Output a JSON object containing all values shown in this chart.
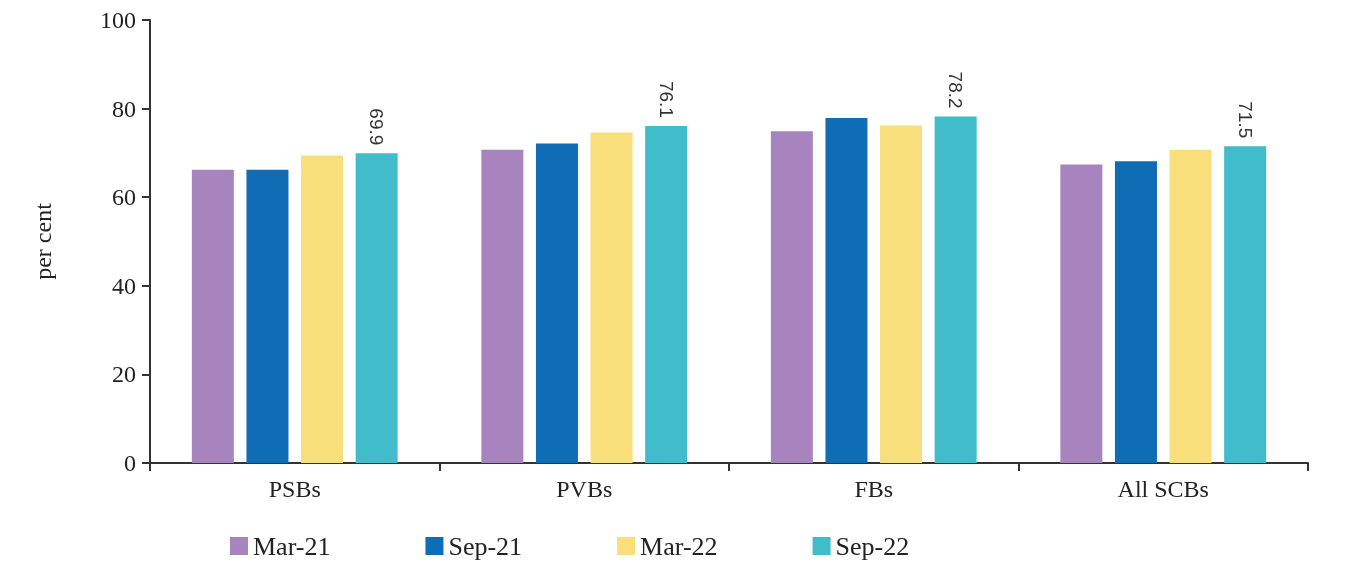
{
  "chart_data": {
    "type": "bar",
    "ylabel": "per cent",
    "categories": [
      "PSBs",
      "PVBs",
      "FBs",
      "All SCBs"
    ],
    "series": [
      {
        "name": "Mar-21",
        "color": "#a884be",
        "values": [
          66.2,
          70.7,
          74.9,
          67.4
        ]
      },
      {
        "name": "Sep-21",
        "color": "#0f6db5",
        "values": [
          66.2,
          72.1,
          77.9,
          68.1
        ]
      },
      {
        "name": "Mar-22",
        "color": "#f8df7c",
        "values": [
          69.4,
          74.6,
          76.2,
          70.7
        ]
      },
      {
        "name": "Sep-22",
        "color": "#40bccb",
        "values": [
          69.9,
          76.1,
          78.2,
          71.5
        ],
        "value_labels": [
          "69.9",
          "76.1",
          "78.2",
          "71.5"
        ]
      }
    ],
    "ylim": [
      0,
      100
    ],
    "yticks": [
      0,
      20,
      40,
      60,
      80,
      100
    ],
    "grid": false,
    "legend": "bottom"
  }
}
